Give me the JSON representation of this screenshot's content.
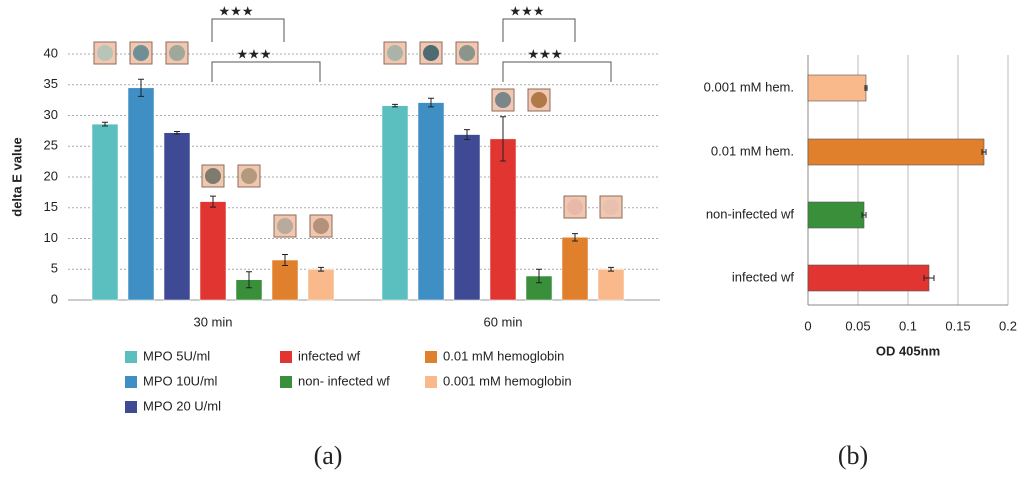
{
  "chart_data": [
    {
      "type": "bar",
      "categories": [
        "30 min",
        "60 min"
      ],
      "ylabel": "delta E value",
      "ylim": [
        0,
        45
      ],
      "yticks": [
        0,
        5,
        10,
        15,
        20,
        25,
        30,
        35,
        40
      ],
      "grid": true,
      "series": [
        {
          "name": "MPO 5U/ml",
          "color": "#5bbfbf",
          "values": [
            28.6,
            31.6
          ],
          "errors": [
            0.3,
            0.2
          ]
        },
        {
          "name": "MPO 10U/ml",
          "color": "#3f8fc4",
          "values": [
            34.5,
            32.1
          ],
          "errors": [
            1.4,
            0.7
          ]
        },
        {
          "name": "MPO 20 U/ml",
          "color": "#3f4a94",
          "values": [
            27.2,
            26.9
          ],
          "errors": [
            0.2,
            0.8
          ]
        },
        {
          "name": "infected wf",
          "color": "#e03530",
          "values": [
            16,
            26.2
          ],
          "errors": [
            0.9,
            3.6
          ]
        },
        {
          "name": "non- infected wf",
          "color": "#3a8f3a",
          "values": [
            3.3,
            3.9
          ],
          "errors": [
            1.3,
            1.1
          ]
        },
        {
          "name": "0.01 mM hemoglobin",
          "color": "#e07f2c",
          "values": [
            6.5,
            10.2
          ],
          "errors": [
            0.9,
            0.6
          ]
        },
        {
          "name": "0.001 mM hemoglobin",
          "color": "#f9b98a",
          "values": [
            5,
            5
          ],
          "errors": [
            0.3,
            0.3
          ]
        }
      ],
      "annotations": [
        "★★★",
        "★★★",
        "★★★",
        "★★★"
      ],
      "panel_label": "(a)"
    },
    {
      "type": "hbar",
      "categories": [
        "0.001 mM hem.",
        "0.01 mM hem.",
        "non-infected wf",
        "infected wf"
      ],
      "values": [
        0.058,
        0.176,
        0.056,
        0.121
      ],
      "errors": [
        0.001,
        0.002,
        0.002,
        0.005
      ],
      "colors": [
        "#f9b98a",
        "#e07f2c",
        "#3a8f3a",
        "#e03530"
      ],
      "xlabel": "OD 405nm",
      "xlim": [
        0,
        0.2
      ],
      "xticks": [
        0,
        0.05,
        0.1,
        0.15,
        0.2
      ],
      "grid": true,
      "panel_label": "(b)"
    }
  ]
}
